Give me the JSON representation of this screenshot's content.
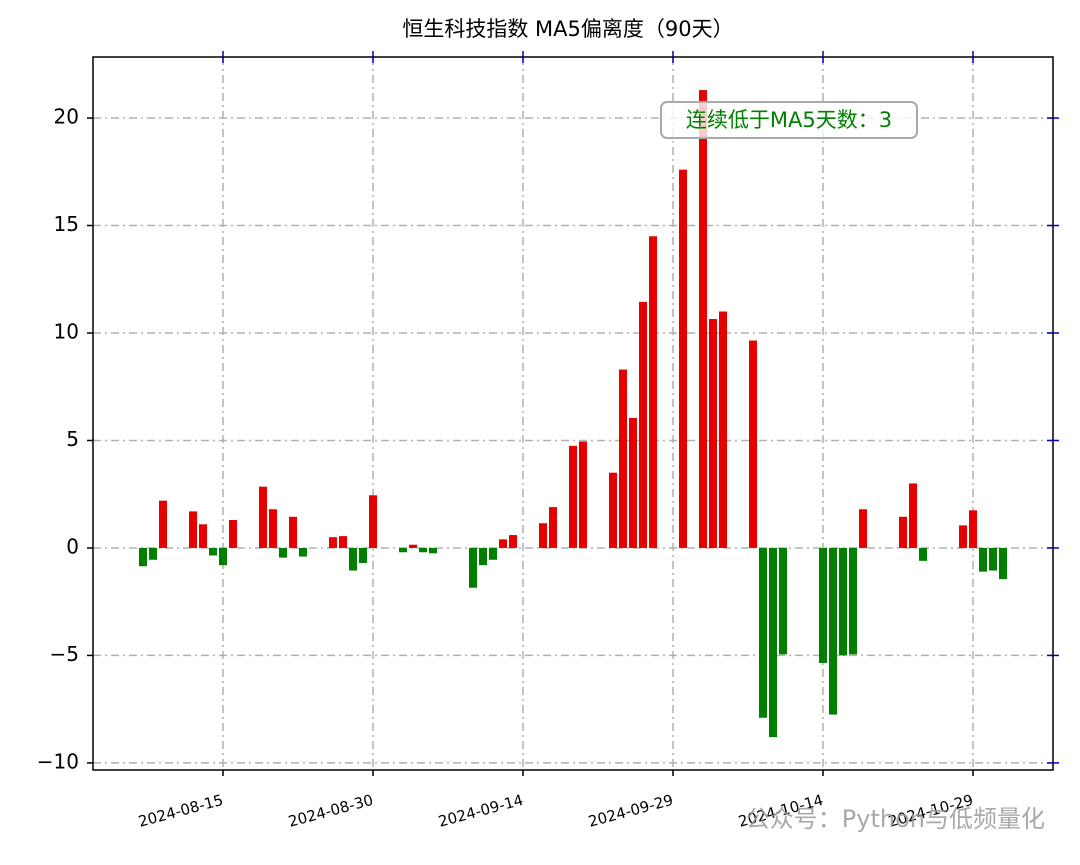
{
  "chart_data": {
    "type": "bar",
    "title": "恒生科技指数 MA5偏离度（90天）",
    "annotation": "连续低于MA5天数：3",
    "watermark": "公众号：Python与低频量化",
    "x": [
      "2024-08-07",
      "2024-08-08",
      "2024-08-09",
      "2024-08-12",
      "2024-08-13",
      "2024-08-14",
      "2024-08-15",
      "2024-08-16",
      "2024-08-19",
      "2024-08-20",
      "2024-08-21",
      "2024-08-22",
      "2024-08-23",
      "2024-08-26",
      "2024-08-27",
      "2024-08-28",
      "2024-08-29",
      "2024-08-30",
      "2024-09-02",
      "2024-09-03",
      "2024-09-04",
      "2024-09-05",
      "2024-09-09",
      "2024-09-10",
      "2024-09-11",
      "2024-09-12",
      "2024-09-13",
      "2024-09-16",
      "2024-09-17",
      "2024-09-19",
      "2024-09-20",
      "2024-09-23",
      "2024-09-24",
      "2024-09-25",
      "2024-09-26",
      "2024-09-27",
      "2024-09-30",
      "2024-10-02",
      "2024-10-03",
      "2024-10-04",
      "2024-10-07",
      "2024-10-08",
      "2024-10-09",
      "2024-10-10",
      "2024-10-14",
      "2024-10-15",
      "2024-10-16",
      "2024-10-17",
      "2024-10-18",
      "2024-10-22",
      "2024-10-23",
      "2024-10-24",
      "2024-10-28",
      "2024-10-29",
      "2024-10-30",
      "2024-10-31",
      "2024-11-01"
    ],
    "values": [
      -0.85,
      -0.55,
      2.2,
      1.7,
      1.1,
      -0.35,
      -0.8,
      1.3,
      2.85,
      1.8,
      -0.45,
      1.45,
      -0.4,
      0.5,
      0.55,
      -1.05,
      -0.7,
      2.45,
      -0.2,
      0.15,
      -0.2,
      -0.25,
      -1.85,
      -0.8,
      -0.55,
      0.4,
      0.6,
      1.15,
      1.9,
      4.75,
      4.95,
      3.5,
      8.3,
      6.05,
      11.45,
      14.5,
      17.6,
      21.3,
      10.65,
      11.0,
      9.65,
      -7.9,
      -8.8,
      -4.95,
      -5.35,
      -7.75,
      -5.0,
      -4.95,
      1.8,
      1.45,
      3.0,
      -0.6,
      1.05,
      1.75,
      -1.1,
      -1.05,
      -1.45
    ],
    "positive_color": "#e60000",
    "negative_color": "#008000",
    "xlim": [
      "2024-08-02",
      "2024-11-06"
    ],
    "xticks": [
      "2024-08-15",
      "2024-08-30",
      "2024-09-14",
      "2024-09-29",
      "2024-10-14",
      "2024-10-29"
    ],
    "ylim": [
      -10.33,
      22.84
    ],
    "yticks": [
      {
        "value": -10,
        "label": "−10"
      },
      {
        "value": -5,
        "label": "−5"
      },
      0,
      5,
      10,
      15,
      20
    ],
    "grid": true
  }
}
